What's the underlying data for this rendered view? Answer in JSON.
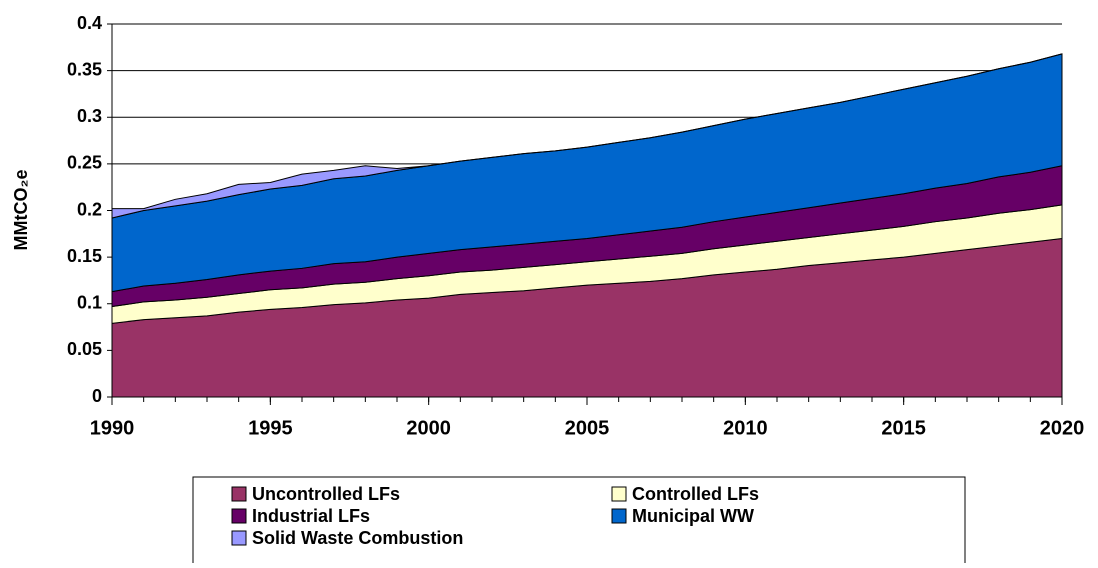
{
  "chart_data": {
    "type": "stacked-area",
    "y_label": "MMtCO₂e",
    "x": [
      1990,
      1991,
      1992,
      1993,
      1994,
      1995,
      1996,
      1997,
      1998,
      1999,
      2000,
      2001,
      2002,
      2003,
      2004,
      2005,
      2006,
      2007,
      2008,
      2009,
      2010,
      2011,
      2012,
      2013,
      2014,
      2015,
      2016,
      2017,
      2018,
      2019,
      2020
    ],
    "xlim": [
      1990,
      2020
    ],
    "xticks": [
      1990,
      1995,
      2000,
      2005,
      2010,
      2015,
      2020
    ],
    "ylim": [
      0,
      0.4
    ],
    "yticks": [
      0,
      0.05,
      0.1,
      0.15,
      0.2,
      0.25,
      0.3,
      0.35,
      0.4
    ],
    "grid": true,
    "series": [
      {
        "name": "Uncontrolled LFs",
        "color": "#993366",
        "values": [
          0.079,
          0.083,
          0.085,
          0.087,
          0.091,
          0.094,
          0.096,
          0.099,
          0.101,
          0.104,
          0.106,
          0.11,
          0.112,
          0.114,
          0.117,
          0.12,
          0.122,
          0.124,
          0.127,
          0.131,
          0.134,
          0.137,
          0.141,
          0.144,
          0.147,
          0.15,
          0.154,
          0.158,
          0.162,
          0.166,
          0.17
        ]
      },
      {
        "name": "Controlled LFs",
        "color": "#ffffcc",
        "values": [
          0.018,
          0.019,
          0.019,
          0.02,
          0.02,
          0.021,
          0.021,
          0.022,
          0.022,
          0.023,
          0.024,
          0.024,
          0.024,
          0.025,
          0.025,
          0.025,
          0.026,
          0.027,
          0.027,
          0.028,
          0.029,
          0.03,
          0.03,
          0.031,
          0.032,
          0.033,
          0.034,
          0.034,
          0.035,
          0.035,
          0.036
        ]
      },
      {
        "name": "Industrial LFs",
        "color": "#660066",
        "values": [
          0.016,
          0.017,
          0.018,
          0.019,
          0.02,
          0.02,
          0.021,
          0.022,
          0.022,
          0.023,
          0.024,
          0.024,
          0.025,
          0.025,
          0.025,
          0.025,
          0.026,
          0.027,
          0.028,
          0.029,
          0.03,
          0.031,
          0.032,
          0.033,
          0.034,
          0.035,
          0.036,
          0.037,
          0.039,
          0.04,
          0.042
        ]
      },
      {
        "name": "Municipal WW",
        "color": "#0066cc",
        "values": [
          0.079,
          0.081,
          0.083,
          0.084,
          0.086,
          0.088,
          0.089,
          0.091,
          0.092,
          0.093,
          0.094,
          0.095,
          0.096,
          0.097,
          0.097,
          0.098,
          0.099,
          0.1,
          0.102,
          0.103,
          0.105,
          0.106,
          0.107,
          0.108,
          0.11,
          0.112,
          0.113,
          0.115,
          0.116,
          0.118,
          0.12
        ]
      },
      {
        "name": "Solid Waste Combustion",
        "color": "#9999ff",
        "values": [
          0.01,
          0.002,
          0.007,
          0.008,
          0.011,
          0.007,
          0.012,
          0.009,
          0.011,
          0.002,
          0,
          0,
          0,
          0,
          0,
          0,
          0,
          0,
          0,
          0,
          0,
          0,
          0,
          0,
          0,
          0,
          0,
          0,
          0,
          0,
          0
        ]
      }
    ]
  }
}
